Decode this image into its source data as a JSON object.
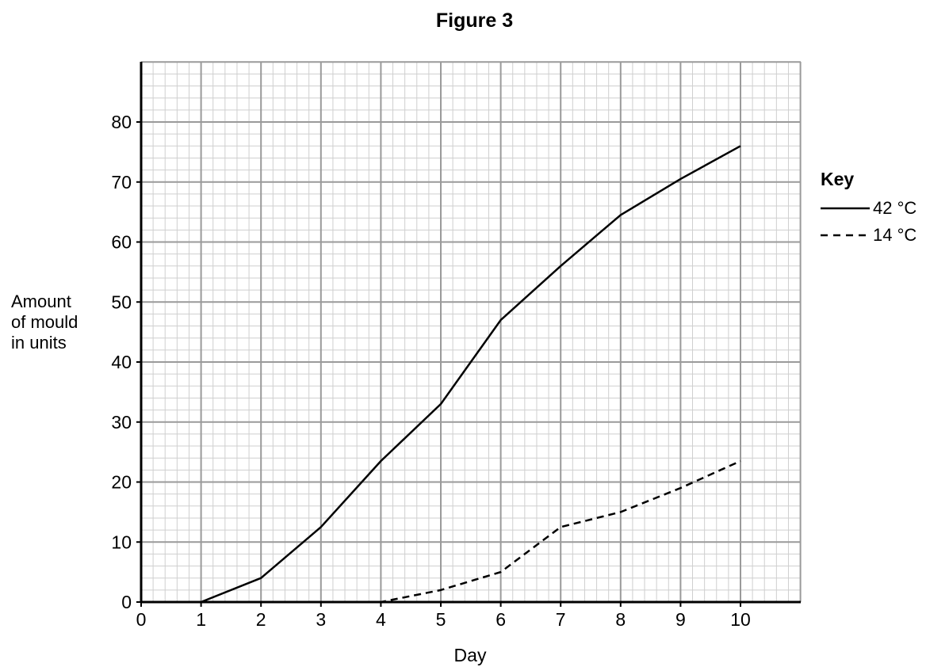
{
  "chart_data": {
    "type": "line",
    "title": "Figure 3",
    "xlabel": "Day",
    "ylabel": [
      "Amount",
      "of mould",
      "in units"
    ],
    "xlim": [
      0,
      11
    ],
    "ylim": [
      0,
      90
    ],
    "xticks": [
      0,
      1,
      2,
      3,
      4,
      5,
      6,
      7,
      8,
      9,
      10
    ],
    "yticks": [
      0,
      10,
      20,
      30,
      40,
      50,
      60,
      70,
      80
    ],
    "grid": true,
    "legend": {
      "title": "Key",
      "placement": "right"
    },
    "series": [
      {
        "name": "42 °C",
        "style": "solid",
        "x": [
          0,
          1,
          2,
          3,
          4,
          5,
          6,
          7,
          8,
          9,
          10
        ],
        "y": [
          0,
          0,
          4,
          12.5,
          23.5,
          33,
          47,
          56,
          64.5,
          70.5,
          76
        ]
      },
      {
        "name": "14 °C",
        "style": "dashed",
        "x": [
          0,
          4,
          5,
          6,
          7,
          8,
          9,
          10
        ],
        "y": [
          0,
          0,
          2,
          5,
          12.5,
          15,
          19,
          23.5
        ]
      }
    ]
  }
}
